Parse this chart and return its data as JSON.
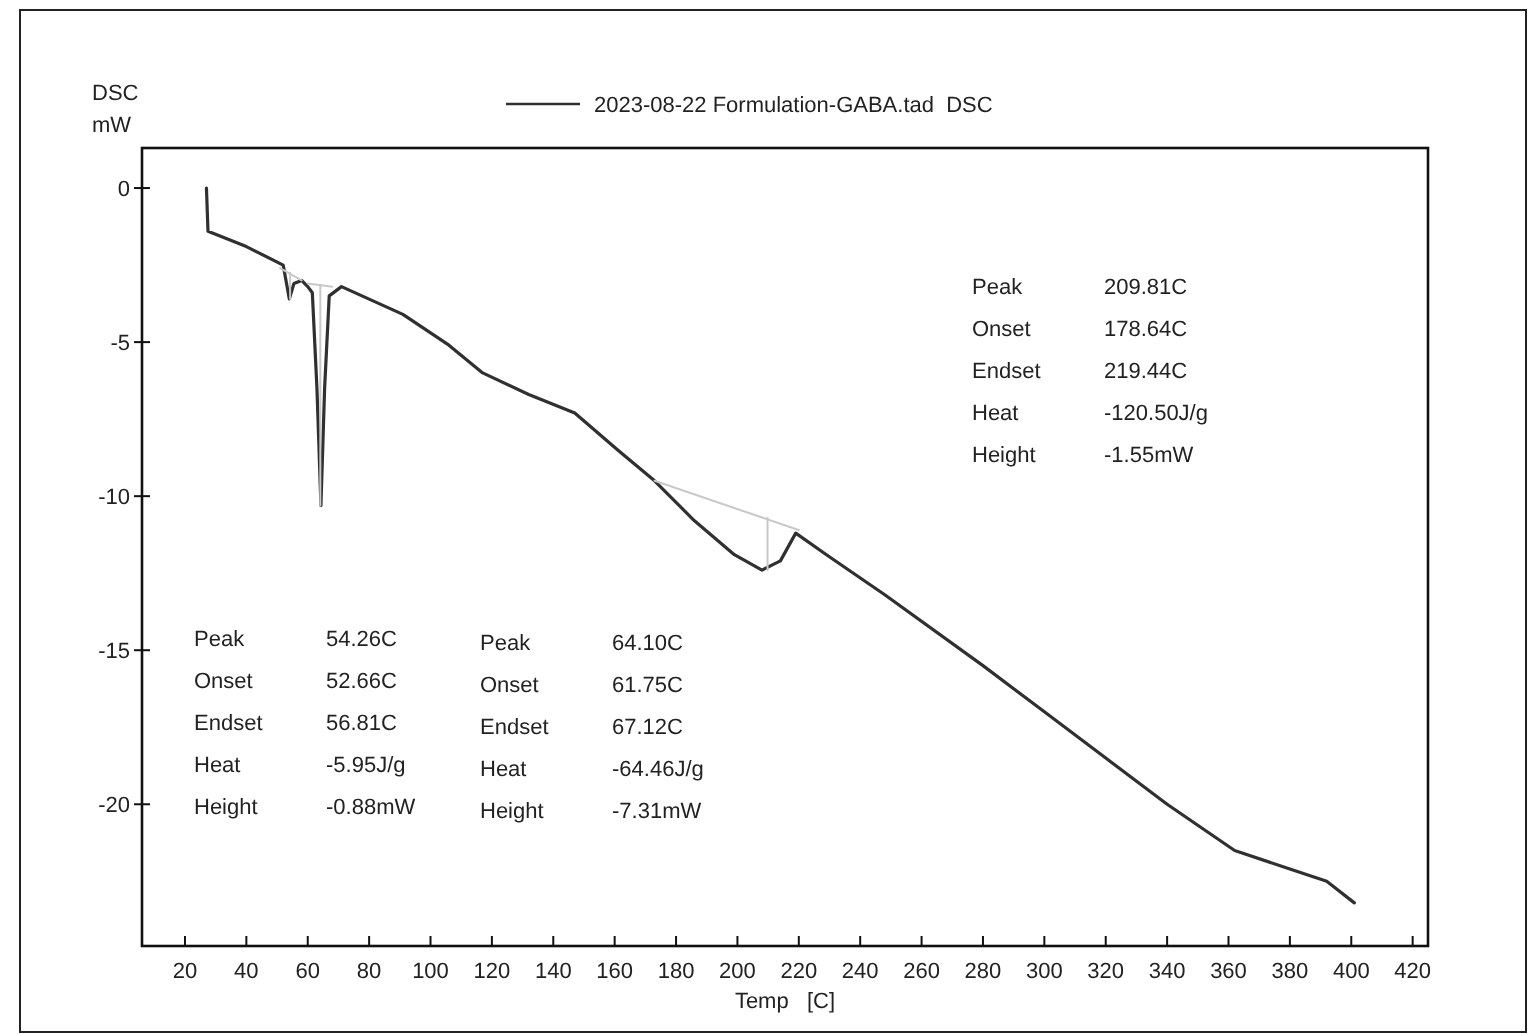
{
  "chart_data": {
    "type": "line",
    "xlabel": "Temp   [C]",
    "ylabel": "DSC\nmW",
    "xlim": [
      6,
      425
    ],
    "ylim": [
      -24.6,
      1.3
    ],
    "xticks": [
      20,
      40,
      60,
      80,
      100,
      120,
      140,
      160,
      180,
      200,
      220,
      240,
      260,
      280,
      300,
      320,
      340,
      360,
      380,
      400,
      420
    ],
    "yticks": [
      -20,
      -15,
      -10,
      -5,
      0
    ],
    "legend": "top",
    "grid": false,
    "series": [
      {
        "name": "2023-08-22 Formulation-GABA.tad  DSC",
        "color": "#303030",
        "x": [
          27,
          27.5,
          40,
          52,
          54,
          55.5,
          58,
          60,
          61.5,
          63,
          64.3,
          65.5,
          67,
          71,
          91,
          106,
          117,
          132,
          147,
          161,
          173,
          186,
          199,
          208,
          214,
          219,
          229,
          248,
          280,
          300,
          320,
          340,
          362,
          380,
          392,
          401
        ],
        "values": [
          0,
          -1.4,
          -1.9,
          -2.5,
          -3.6,
          -3.1,
          -3.0,
          -3.2,
          -3.4,
          -6.5,
          -10.3,
          -6.5,
          -3.5,
          -3.2,
          -4.1,
          -5.1,
          -6.0,
          -6.7,
          -7.3,
          -8.5,
          -9.5,
          -10.8,
          -11.9,
          -12.4,
          -12.1,
          -11.2,
          -11.9,
          -13.2,
          -15.5,
          -17.0,
          -18.5,
          -20.0,
          -21.5,
          -22.1,
          -22.5,
          -23.2
        ]
      },
      {
        "color": "#c8c8c8",
        "x": [
          51,
          58
        ],
        "values": [
          -2.6,
          -3.0
        ]
      },
      {
        "color": "#c8c8c8",
        "x": [
          60,
          68
        ],
        "values": [
          -3.1,
          -3.2
        ]
      },
      {
        "color": "#c8c8c8",
        "x": [
          173,
          220
        ],
        "values": [
          -9.5,
          -11.1
        ]
      },
      {
        "color": "#c8c8c8",
        "x": [
          54.26,
          54.26
        ],
        "values": [
          -2.75,
          -3.6
        ]
      },
      {
        "color": "#c8c8c8",
        "x": [
          64.1,
          64.1
        ],
        "values": [
          -3.15,
          -10.3
        ]
      },
      {
        "color": "#c8c8c8",
        "x": [
          209.81,
          209.81
        ],
        "values": [
          -10.7,
          -12.4
        ]
      }
    ],
    "annotations": [
      "Peak\t209.81C",
      "Onset\t178.64C",
      "Endset\t219.44C",
      "Heat\t-120.50J/g",
      "Height\t-1.55mW",
      "Peak\t54.26C",
      "Onset\t52.66C",
      "Endset\t56.81C",
      "Heat\t-5.95J/g",
      "Height\t-0.88mW",
      "Peak\t64.10C",
      "Onset\t61.75C",
      "Endset\t67.12C",
      "Heat\t-64.46J/g",
      "Height\t-7.31mW"
    ]
  }
}
